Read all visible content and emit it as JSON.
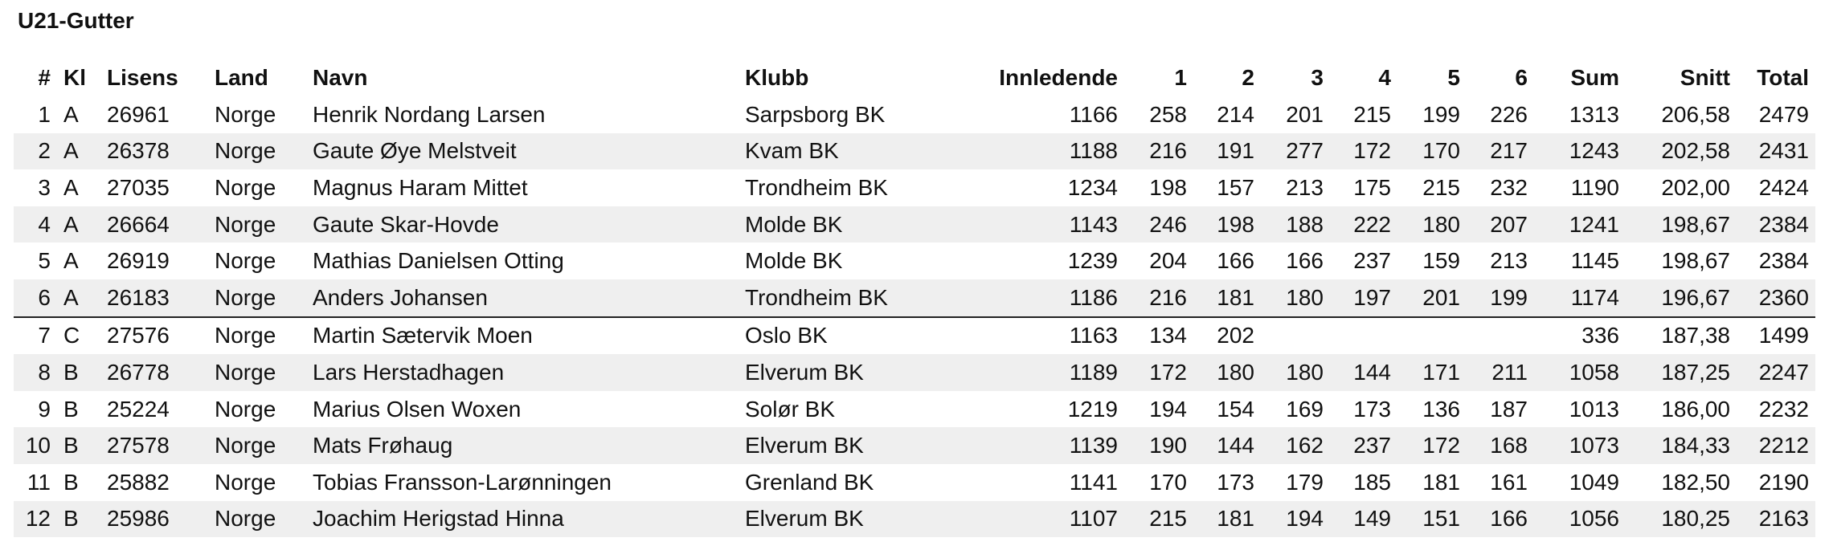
{
  "title": "U21-Gutter",
  "columns": [
    "#",
    "Kl",
    "Lisens",
    "Land",
    "Navn",
    "Klubb",
    "Innledende",
    "1",
    "2",
    "3",
    "4",
    "5",
    "6",
    "Sum",
    "Snitt",
    "Total"
  ],
  "rows": [
    [
      "1",
      "A",
      "26961",
      "Norge",
      "Henrik Nordang Larsen",
      "Sarpsborg BK",
      "1166",
      "258",
      "214",
      "201",
      "215",
      "199",
      "226",
      "1313",
      "206,58",
      "2479"
    ],
    [
      "2",
      "A",
      "26378",
      "Norge",
      "Gaute Øye Melstveit",
      "Kvam BK",
      "1188",
      "216",
      "191",
      "277",
      "172",
      "170",
      "217",
      "1243",
      "202,58",
      "2431"
    ],
    [
      "3",
      "A",
      "27035",
      "Norge",
      "Magnus Haram Mittet",
      "Trondheim BK",
      "1234",
      "198",
      "157",
      "213",
      "175",
      "215",
      "232",
      "1190",
      "202,00",
      "2424"
    ],
    [
      "4",
      "A",
      "26664",
      "Norge",
      "Gaute Skar-Hovde",
      "Molde BK",
      "1143",
      "246",
      "198",
      "188",
      "222",
      "180",
      "207",
      "1241",
      "198,67",
      "2384"
    ],
    [
      "5",
      "A",
      "26919",
      "Norge",
      "Mathias Danielsen Otting",
      "Molde BK",
      "1239",
      "204",
      "166",
      "166",
      "237",
      "159",
      "213",
      "1145",
      "198,67",
      "2384"
    ],
    [
      "6",
      "A",
      "26183",
      "Norge",
      "Anders Johansen",
      "Trondheim BK",
      "1186",
      "216",
      "181",
      "180",
      "197",
      "201",
      "199",
      "1174",
      "196,67",
      "2360"
    ],
    [
      "7",
      "C",
      "27576",
      "Norge",
      "Martin Sætervik Moen",
      "Oslo BK",
      "1163",
      "134",
      "202",
      "",
      "",
      "",
      "",
      "336",
      "187,38",
      "1499"
    ],
    [
      "8",
      "B",
      "26778",
      "Norge",
      "Lars Herstadhagen",
      "Elverum BK",
      "1189",
      "172",
      "180",
      "180",
      "144",
      "171",
      "211",
      "1058",
      "187,25",
      "2247"
    ],
    [
      "9",
      "B",
      "25224",
      "Norge",
      "Marius Olsen Woxen",
      "Solør BK",
      "1219",
      "194",
      "154",
      "169",
      "173",
      "136",
      "187",
      "1013",
      "186,00",
      "2232"
    ],
    [
      "10",
      "B",
      "27578",
      "Norge",
      "Mats Frøhaug",
      "Elverum BK",
      "1139",
      "190",
      "144",
      "162",
      "237",
      "172",
      "168",
      "1073",
      "184,33",
      "2212"
    ],
    [
      "11",
      "B",
      "25882",
      "Norge",
      "Tobias Fransson-Larønningen",
      "Grenland BK",
      "1141",
      "170",
      "173",
      "179",
      "185",
      "181",
      "161",
      "1049",
      "182,50",
      "2190"
    ],
    [
      "12",
      "B",
      "25986",
      "Norge",
      "Joachim Herigstad Hinna",
      "Elverum BK",
      "1107",
      "215",
      "181",
      "194",
      "149",
      "151",
      "166",
      "1056",
      "180,25",
      "2163"
    ]
  ]
}
